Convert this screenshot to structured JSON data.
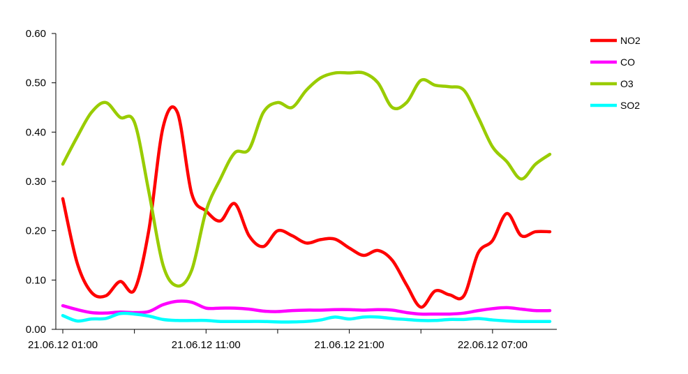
{
  "chart_data": {
    "type": "line",
    "title": "",
    "xlabel": "",
    "ylabel": "",
    "ylim": [
      0,
      0.6
    ],
    "y_ticks": [
      "0.00",
      "0.10",
      "0.20",
      "0.30",
      "0.40",
      "0.50",
      "0.60"
    ],
    "x_tick_labels": [
      "21.06.12 01:00",
      "21.06.12 11:00",
      "21.06.12 21:00",
      "22.06.12 07:00"
    ],
    "x_tick_hours": [
      0,
      10,
      20,
      30
    ],
    "x_range_hours": [
      0,
      34
    ],
    "grid": false,
    "legend_position": "top-right",
    "series": [
      {
        "name": "NO2",
        "color": "#ff0000",
        "x": [
          0,
          1,
          2,
          3,
          4,
          5,
          6,
          7,
          8,
          9,
          10,
          11,
          12,
          13,
          14,
          15,
          16,
          17,
          18,
          19,
          20,
          21,
          22,
          23,
          24,
          25,
          26,
          27,
          28,
          29,
          30,
          31,
          32,
          33,
          34
        ],
        "values": [
          0.265,
          0.135,
          0.075,
          0.068,
          0.097,
          0.08,
          0.2,
          0.41,
          0.44,
          0.275,
          0.24,
          0.22,
          0.255,
          0.19,
          0.168,
          0.2,
          0.19,
          0.175,
          0.182,
          0.183,
          0.165,
          0.15,
          0.16,
          0.14,
          0.09,
          0.045,
          0.078,
          0.07,
          0.068,
          0.155,
          0.18,
          0.235,
          0.19,
          0.198,
          0.198
        ]
      },
      {
        "name": "CO",
        "color": "#ff00ff",
        "x": [
          0,
          1,
          2,
          3,
          4,
          5,
          6,
          7,
          8,
          9,
          10,
          11,
          12,
          13,
          14,
          15,
          16,
          17,
          18,
          19,
          20,
          21,
          22,
          23,
          24,
          25,
          26,
          27,
          28,
          29,
          30,
          31,
          32,
          33,
          34
        ],
        "values": [
          0.048,
          0.04,
          0.034,
          0.033,
          0.035,
          0.034,
          0.036,
          0.05,
          0.057,
          0.055,
          0.043,
          0.043,
          0.043,
          0.041,
          0.037,
          0.036,
          0.038,
          0.039,
          0.039,
          0.04,
          0.04,
          0.039,
          0.04,
          0.039,
          0.034,
          0.031,
          0.031,
          0.031,
          0.033,
          0.038,
          0.042,
          0.044,
          0.041,
          0.038,
          0.038
        ]
      },
      {
        "name": "O3",
        "color": "#99cc00",
        "x": [
          0,
          1,
          2,
          3,
          4,
          5,
          6,
          7,
          8,
          9,
          10,
          11,
          12,
          13,
          14,
          15,
          16,
          17,
          18,
          19,
          20,
          21,
          22,
          23,
          24,
          25,
          26,
          27,
          28,
          29,
          30,
          31,
          32,
          33,
          34
        ],
        "values": [
          0.335,
          0.39,
          0.44,
          0.46,
          0.43,
          0.42,
          0.28,
          0.13,
          0.088,
          0.12,
          0.24,
          0.305,
          0.358,
          0.365,
          0.44,
          0.46,
          0.45,
          0.485,
          0.51,
          0.52,
          0.52,
          0.52,
          0.5,
          0.45,
          0.46,
          0.505,
          0.495,
          0.492,
          0.485,
          0.43,
          0.37,
          0.34,
          0.305,
          0.335,
          0.355
        ]
      },
      {
        "name": "SO2",
        "color": "#00ffff",
        "x": [
          0,
          1,
          2,
          3,
          4,
          5,
          6,
          7,
          8,
          9,
          10,
          11,
          12,
          13,
          14,
          15,
          16,
          17,
          18,
          19,
          20,
          21,
          22,
          23,
          24,
          25,
          26,
          27,
          28,
          29,
          30,
          31,
          32,
          33,
          34
        ],
        "values": [
          0.028,
          0.017,
          0.021,
          0.022,
          0.032,
          0.031,
          0.027,
          0.02,
          0.018,
          0.018,
          0.018,
          0.016,
          0.016,
          0.016,
          0.016,
          0.015,
          0.015,
          0.016,
          0.019,
          0.025,
          0.021,
          0.025,
          0.025,
          0.022,
          0.02,
          0.018,
          0.018,
          0.02,
          0.02,
          0.022,
          0.019,
          0.017,
          0.016,
          0.016,
          0.016
        ]
      }
    ]
  }
}
